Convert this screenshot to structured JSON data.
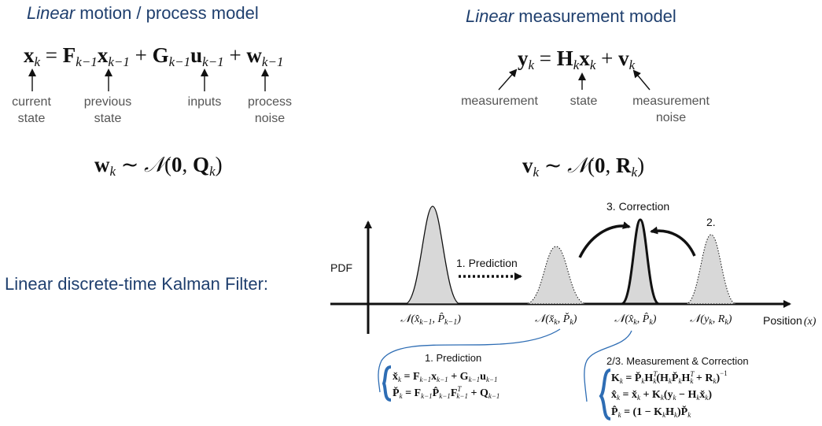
{
  "headers": {
    "left_italic": "Linear",
    "left_rest": " motion / process model",
    "right_italic": "Linear",
    "right_rest": " measurement model"
  },
  "motion_equation": "x_k = F_{k-1} x_{k-1} + G_{k-1} u_{k-1} + w_{k-1}",
  "motion_labels": {
    "current_state": "current\nstate",
    "previous_state": "previous\nstate",
    "inputs": "inputs",
    "process_noise": "process\nnoise"
  },
  "process_noise_dist": "w_k ~ N(0, Q_k)",
  "measurement_equation": "y_k = H_k x_k + v_k",
  "measurement_labels": {
    "measurement": "measurement",
    "state": "state",
    "measurement_noise": "measurement\nnoise"
  },
  "measurement_noise_dist": "v_k ~ N(0, R_k)",
  "kalman_title": "Linear discrete-time Kalman Filter:",
  "plot": {
    "y_axis_label": "PDF",
    "x_axis_label": "Position",
    "x_axis_var": "(x)",
    "prediction_label": "1. Prediction",
    "correction_label": "3. Correction",
    "measurement_step_label": "2.",
    "dist_labels": {
      "prev": "N(x̂_{k-1}, P̂_{k-1})",
      "pred": "N(x̌_k, P̌_k)",
      "corr": "N(x̂_k, P̂_k)",
      "meas": "N(y_k, R_k)"
    }
  },
  "prediction_box": {
    "title": "1. Prediction",
    "eq1": "x̌_k = F_{k-1} x_{k-1} + G_{k-1} u_{k-1}",
    "eq2": "P̌_k = F_{k-1} P̂_{k-1} F^T_{k-1} + Q_{k-1}"
  },
  "correction_box": {
    "title": "2/3. Measurement & Correction",
    "eq1": "K_k = P̌_k H^T_k (H_k P̌_k H^T_k + R_k)^{-1}",
    "eq2": "x̂_k = x̌_k + K_k(y_k − H_k x̌_k)",
    "eq3": "P̂_k = (1 − K_k H_k) P̌_k"
  },
  "colors": {
    "heading": "#1f3f6e",
    "bracket": "#2e6db4",
    "curve_fill": "#d8d8d8"
  }
}
